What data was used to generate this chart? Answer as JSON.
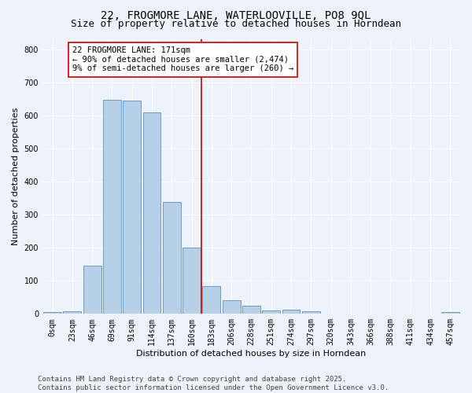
{
  "title_line1": "22, FROGMORE LANE, WATERLOOVILLE, PO8 9QL",
  "title_line2": "Size of property relative to detached houses in Horndean",
  "xlabel": "Distribution of detached houses by size in Horndean",
  "ylabel": "Number of detached properties",
  "bar_labels": [
    "0sqm",
    "23sqm",
    "46sqm",
    "69sqm",
    "91sqm",
    "114sqm",
    "137sqm",
    "160sqm",
    "183sqm",
    "206sqm",
    "228sqm",
    "251sqm",
    "274sqm",
    "297sqm",
    "320sqm",
    "343sqm",
    "366sqm",
    "388sqm",
    "411sqm",
    "434sqm",
    "457sqm"
  ],
  "bar_values": [
    5,
    8,
    145,
    648,
    645,
    610,
    337,
    200,
    85,
    42,
    25,
    10,
    12,
    8,
    0,
    0,
    0,
    0,
    0,
    0,
    5
  ],
  "bar_color": "#b8cfe8",
  "bar_edge_color": "#6090b8",
  "vline_color": "#cc0000",
  "vline_pos": 7.5,
  "annotation_text": "22 FROGMORE LANE: 171sqm\n← 90% of detached houses are smaller (2,474)\n9% of semi-detached houses are larger (260) →",
  "annotation_box_facecolor": "white",
  "annotation_box_edgecolor": "#cc0000",
  "ylim": [
    0,
    830
  ],
  "yticks": [
    0,
    100,
    200,
    300,
    400,
    500,
    600,
    700,
    800
  ],
  "background_color": "#eef2fa",
  "grid_color": "#ffffff",
  "footnote": "Contains HM Land Registry data © Crown copyright and database right 2025.\nContains public sector information licensed under the Open Government Licence v3.0.",
  "title_fontsize": 10,
  "subtitle_fontsize": 9,
  "axis_label_fontsize": 8,
  "tick_fontsize": 7,
  "annotation_fontsize": 7.5,
  "footnote_fontsize": 6.5
}
